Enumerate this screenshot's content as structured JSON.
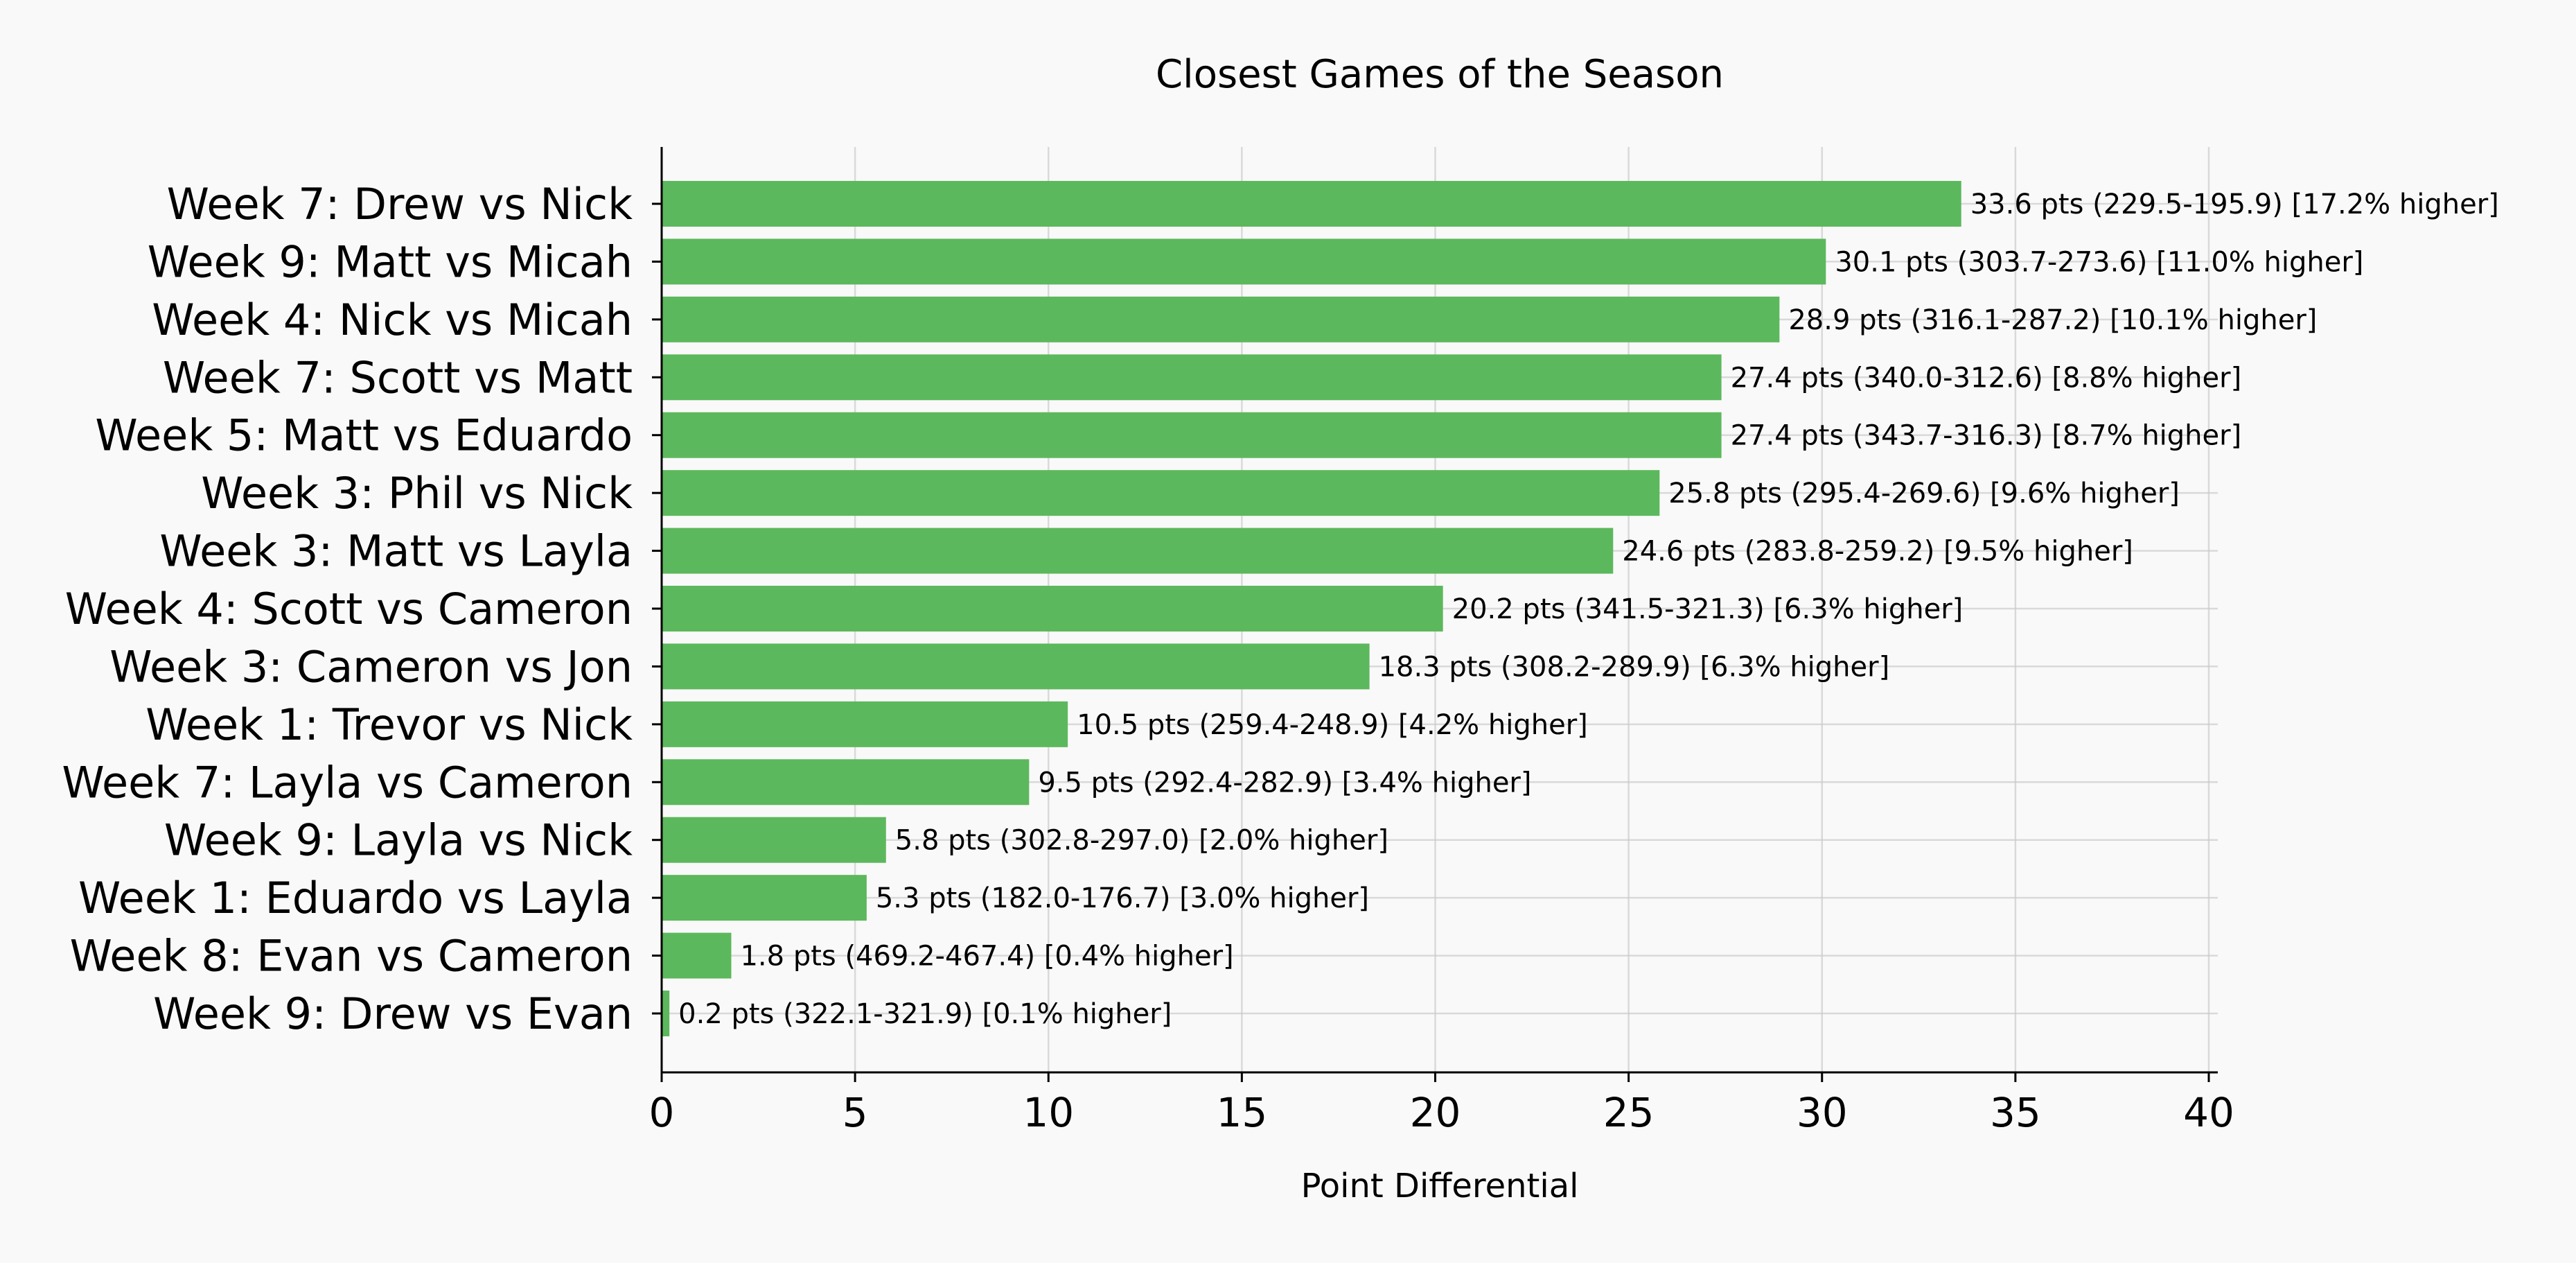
{
  "chart_data": {
    "type": "bar",
    "orientation": "horizontal",
    "title": "Closest Games of the Season",
    "xlabel": "Point Differential",
    "ylabel": "",
    "xlim": [
      0,
      40
    ],
    "xticks": [
      "0",
      "5",
      "10",
      "15",
      "20",
      "25",
      "30",
      "35",
      "40"
    ],
    "grid": true,
    "bar_color": "#5cb85c",
    "categories": [
      "Week 7: Drew vs Nick",
      "Week 9: Matt vs Micah",
      "Week 4: Nick vs Micah",
      "Week 7: Scott vs Matt",
      "Week 5: Matt vs Eduardo",
      "Week 3: Phil vs Nick",
      "Week 3: Matt vs Layla",
      "Week 4: Scott vs Cameron",
      "Week 3: Cameron vs Jon",
      "Week 1: Trevor vs Nick",
      "Week 7: Layla vs Cameron",
      "Week 9: Layla vs Nick",
      "Week 1: Eduardo vs Layla",
      "Week 8: Evan vs Cameron",
      "Week 9: Drew vs Evan"
    ],
    "values": [
      33.6,
      30.1,
      28.9,
      27.4,
      27.4,
      25.8,
      24.6,
      20.2,
      18.3,
      10.5,
      9.5,
      5.8,
      5.3,
      1.8,
      0.2
    ],
    "labels": [
      "33.6 pts (229.5-195.9) [17.2% higher]",
      "30.1 pts (303.7-273.6) [11.0% higher]",
      "28.9 pts (316.1-287.2) [10.1% higher]",
      "27.4 pts (340.0-312.6) [8.8% higher]",
      "27.4 pts (343.7-316.3) [8.7% higher]",
      "25.8 pts (295.4-269.6) [9.6% higher]",
      "24.6 pts (283.8-259.2) [9.5% higher]",
      "20.2 pts (341.5-321.3) [6.3% higher]",
      "18.3 pts (308.2-289.9) [6.3% higher]",
      "10.5 pts (259.4-248.9) [4.2% higher]",
      "9.5 pts (292.4-282.9) [3.4% higher]",
      "5.8 pts (302.8-297.0) [2.0% higher]",
      "5.3 pts (182.0-176.7) [3.0% higher]",
      "1.8 pts (469.2-467.4) [0.4% higher]",
      "0.2 pts (322.1-321.9) [0.1% higher]"
    ]
  }
}
